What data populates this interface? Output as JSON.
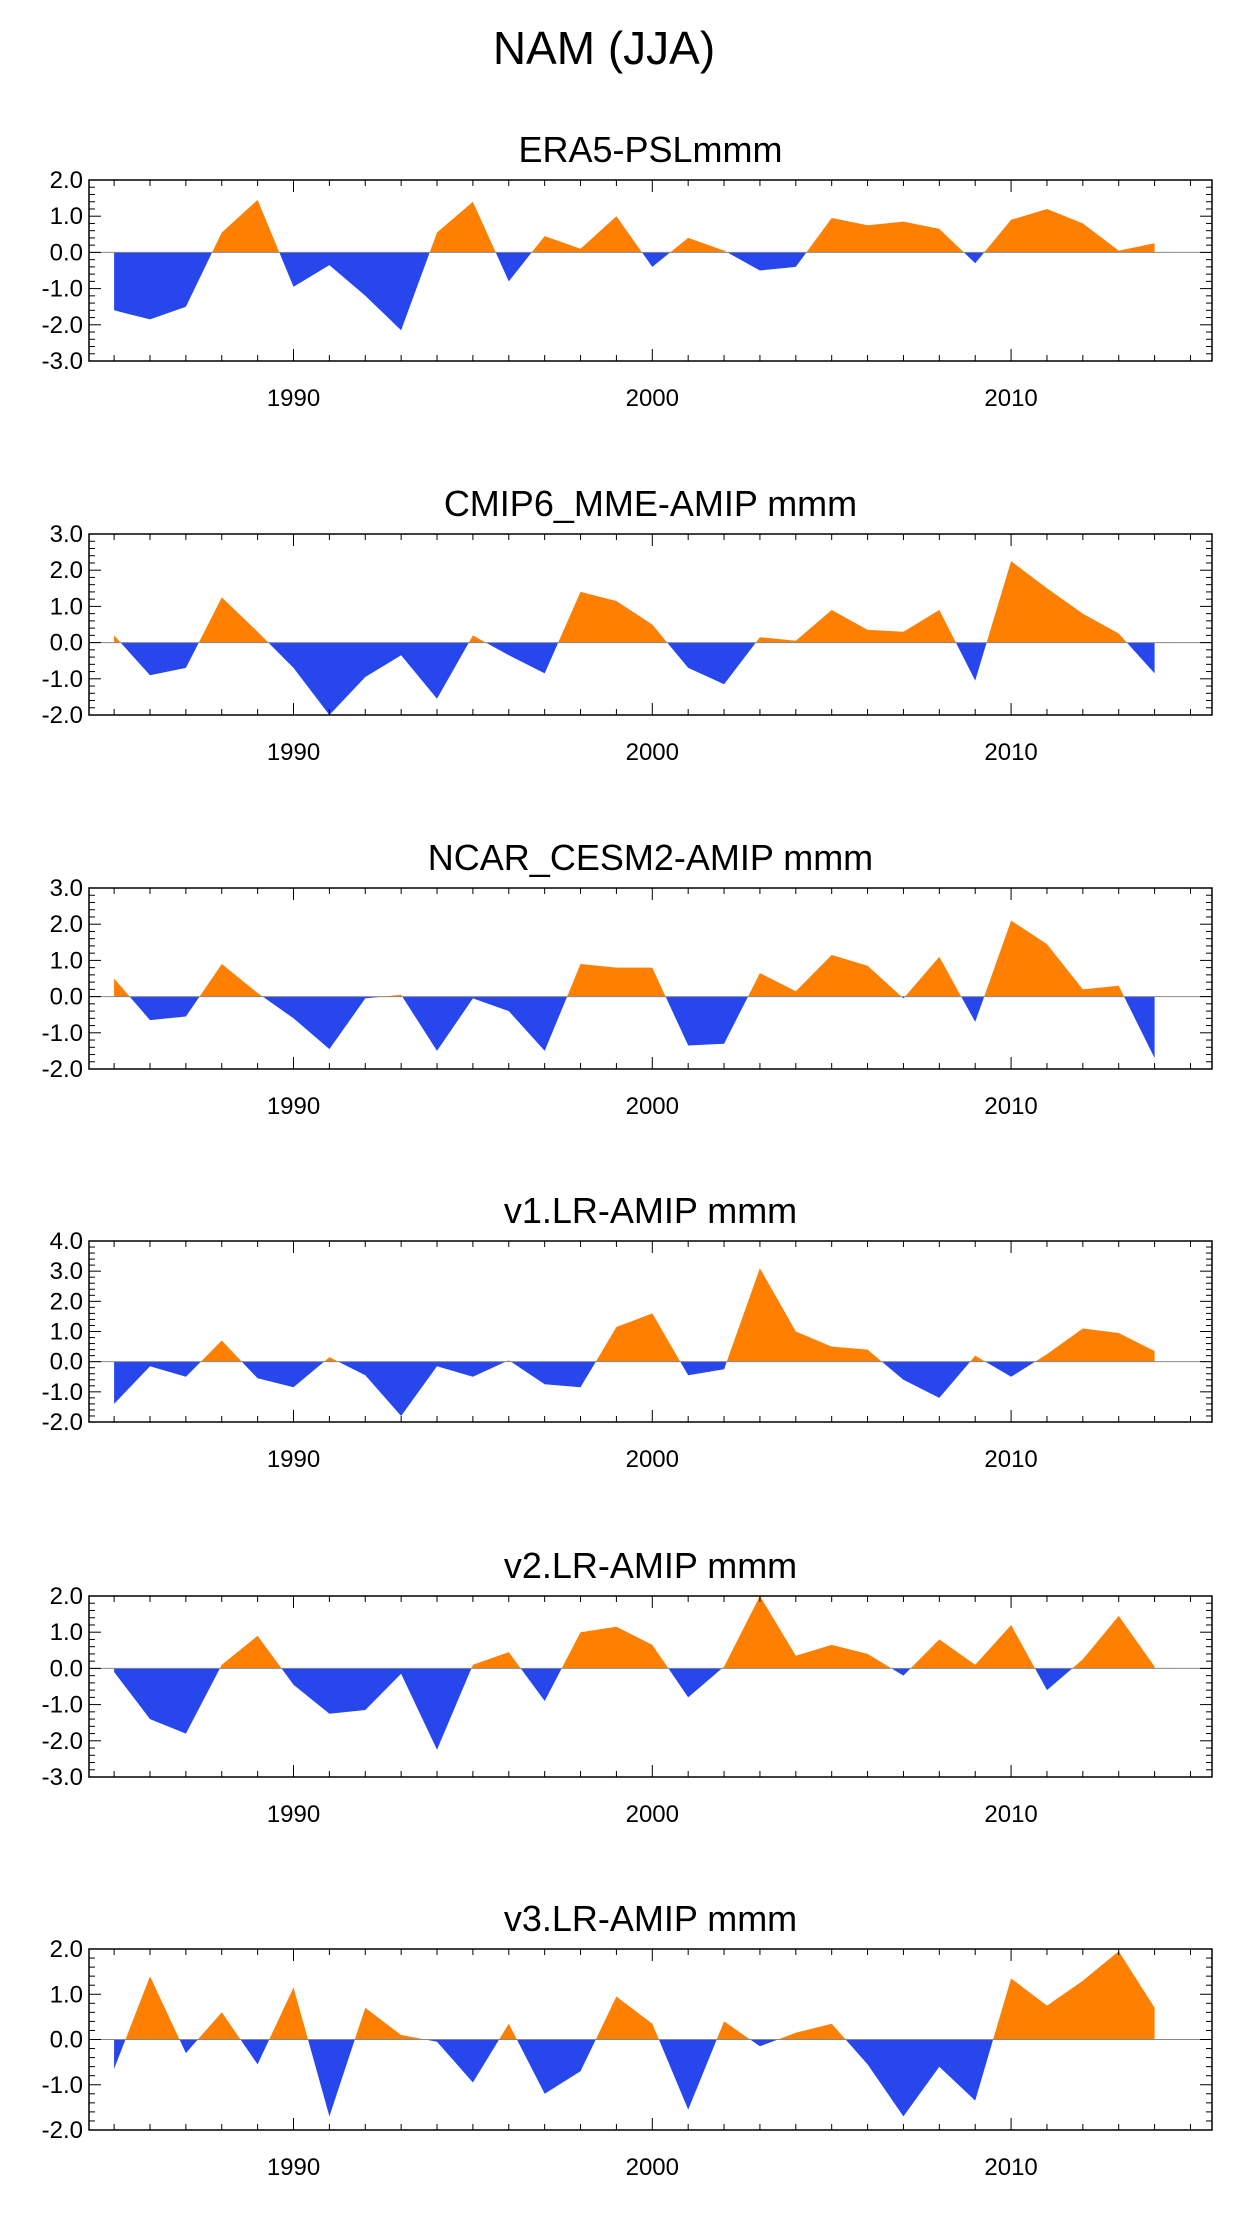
{
  "figure": {
    "title": "NAM (JJA)",
    "colors": {
      "positive": "#FF8000",
      "negative": "#2747EC",
      "frame": "#000000",
      "zero_line": "#888888",
      "background": "#FFFFFF"
    },
    "x_ticks": [
      "1990",
      "2000",
      "2010"
    ]
  },
  "chart_data": [
    {
      "type": "area",
      "title": "ERA5-PSLmmm",
      "xlim": [
        1984.3,
        2015.6
      ],
      "ylim": [
        -3.0,
        2.0
      ],
      "y_ticks": [
        "2.0",
        "1.0",
        "0.0",
        "-1.0",
        "-2.0",
        "-3.0"
      ],
      "x": [
        1985,
        1986,
        1987,
        1988,
        1989,
        1990,
        1991,
        1992,
        1993,
        1994,
        1995,
        1996,
        1997,
        1998,
        1999,
        2000,
        2001,
        2002,
        2003,
        2004,
        2005,
        2006,
        2007,
        2008,
        2009,
        2010,
        2011,
        2012,
        2013,
        2014
      ],
      "values": [
        -1.6,
        -1.85,
        -1.5,
        0.55,
        1.45,
        -0.95,
        -0.35,
        -1.2,
        -2.15,
        0.55,
        1.4,
        -0.8,
        0.45,
        0.1,
        1.0,
        -0.4,
        0.4,
        0.05,
        -0.5,
        -0.4,
        0.95,
        0.75,
        0.85,
        0.65,
        -0.3,
        0.9,
        1.2,
        0.8,
        0.05,
        0.25
      ]
    },
    {
      "type": "area",
      "title": "CMIP6_MME-AMIP  mmm",
      "xlim": [
        1984.3,
        2015.6
      ],
      "ylim": [
        -2.0,
        3.0
      ],
      "y_ticks": [
        "3.0",
        "2.0",
        "1.0",
        "0.0",
        "-1.0",
        "-2.0"
      ],
      "x": [
        1985,
        1986,
        1987,
        1988,
        1989,
        1990,
        1991,
        1992,
        1993,
        1994,
        1995,
        1996,
        1997,
        1998,
        1999,
        2000,
        2001,
        2002,
        2003,
        2004,
        2005,
        2006,
        2007,
        2008,
        2009,
        2010,
        2011,
        2012,
        2013,
        2014
      ],
      "values": [
        0.2,
        -0.9,
        -0.7,
        1.25,
        0.3,
        -0.7,
        -2.0,
        -0.95,
        -0.35,
        -1.55,
        0.2,
        -0.35,
        -0.85,
        1.4,
        1.15,
        0.5,
        -0.7,
        -1.15,
        0.15,
        0.05,
        0.9,
        0.35,
        0.3,
        0.9,
        -1.05,
        2.25,
        1.5,
        0.8,
        0.25,
        -0.85
      ]
    },
    {
      "type": "area",
      "title": "NCAR_CESM2-AMIP  mmm",
      "xlim": [
        1984.3,
        2015.6
      ],
      "ylim": [
        -2.0,
        3.0
      ],
      "y_ticks": [
        "3.0",
        "2.0",
        "1.0",
        "0.0",
        "-1.0",
        "-2.0"
      ],
      "x": [
        1985,
        1986,
        1987,
        1988,
        1989,
        1990,
        1991,
        1992,
        1993,
        1994,
        1995,
        1996,
        1997,
        1998,
        1999,
        2000,
        2001,
        2002,
        2003,
        2004,
        2005,
        2006,
        2007,
        2008,
        2009,
        2010,
        2011,
        2012,
        2013,
        2014
      ],
      "values": [
        0.5,
        -0.65,
        -0.55,
        0.9,
        0.1,
        -0.6,
        -1.45,
        -0.05,
        0.05,
        -1.5,
        -0.05,
        -0.4,
        -1.5,
        0.9,
        0.8,
        0.8,
        -1.35,
        -1.3,
        0.65,
        0.15,
        1.15,
        0.85,
        -0.05,
        1.1,
        -0.7,
        2.1,
        1.45,
        0.2,
        0.3,
        -1.7
      ]
    },
    {
      "type": "area",
      "title": "v1.LR-AMIP  mmm",
      "xlim": [
        1984.3,
        2015.6
      ],
      "ylim": [
        -2.0,
        4.0
      ],
      "y_ticks": [
        "4.0",
        "3.0",
        "2.0",
        "1.0",
        "0.0",
        "-1.0",
        "-2.0"
      ],
      "x": [
        1985,
        1986,
        1987,
        1988,
        1989,
        1990,
        1991,
        1992,
        1993,
        1994,
        1995,
        1996,
        1997,
        1998,
        1999,
        2000,
        2001,
        2002,
        2003,
        2004,
        2005,
        2006,
        2007,
        2008,
        2009,
        2010,
        2011,
        2012,
        2013,
        2014
      ],
      "values": [
        -1.4,
        -0.15,
        -0.5,
        0.7,
        -0.55,
        -0.85,
        0.15,
        -0.45,
        -1.8,
        -0.15,
        -0.5,
        0.05,
        -0.75,
        -0.85,
        1.15,
        1.6,
        -0.45,
        -0.25,
        3.1,
        1.0,
        0.5,
        0.4,
        -0.6,
        -1.2,
        0.2,
        -0.5,
        0.25,
        1.1,
        0.95,
        0.35
      ]
    },
    {
      "type": "area",
      "title": "v2.LR-AMIP  mmm",
      "xlim": [
        1984.3,
        2015.6
      ],
      "ylim": [
        -3.0,
        2.0
      ],
      "y_ticks": [
        "2.0",
        "1.0",
        "0.0",
        "-1.0",
        "-2.0",
        "-3.0"
      ],
      "x": [
        1985,
        1986,
        1987,
        1988,
        1989,
        1990,
        1991,
        1992,
        1993,
        1994,
        1995,
        1996,
        1997,
        1998,
        1999,
        2000,
        2001,
        2002,
        2003,
        2004,
        2005,
        2006,
        2007,
        2008,
        2009,
        2010,
        2011,
        2012,
        2013,
        2014
      ],
      "values": [
        -0.1,
        -1.4,
        -1.8,
        0.1,
        0.9,
        -0.45,
        -1.25,
        -1.15,
        -0.15,
        -2.25,
        0.1,
        0.45,
        -0.9,
        1.0,
        1.15,
        0.65,
        -0.8,
        0.05,
        2.0,
        0.35,
        0.65,
        0.4,
        -0.2,
        0.8,
        0.1,
        1.2,
        -0.6,
        0.25,
        1.45,
        0.05
      ]
    },
    {
      "type": "area",
      "title": "v3.LR-AMIP  mmm",
      "xlim": [
        1984.3,
        2015.6
      ],
      "ylim": [
        -2.0,
        2.0
      ],
      "y_ticks": [
        "2.0",
        "1.0",
        "0.0",
        "-1.0",
        "-2.0"
      ],
      "x": [
        1985,
        1986,
        1987,
        1988,
        1989,
        1990,
        1991,
        1992,
        1993,
        1994,
        1995,
        1996,
        1997,
        1998,
        1999,
        2000,
        2001,
        2002,
        2003,
        2004,
        2005,
        2006,
        2007,
        2008,
        2009,
        2010,
        2011,
        2012,
        2013,
        2014
      ],
      "values": [
        -0.65,
        1.4,
        -0.3,
        0.6,
        -0.55,
        1.15,
        -1.7,
        0.7,
        0.1,
        -0.05,
        -0.95,
        0.35,
        -1.2,
        -0.7,
        0.95,
        0.35,
        -1.55,
        0.4,
        -0.15,
        0.15,
        0.35,
        -0.55,
        -1.7,
        -0.6,
        -1.35,
        1.35,
        0.75,
        1.3,
        1.95,
        0.7
      ]
    }
  ]
}
